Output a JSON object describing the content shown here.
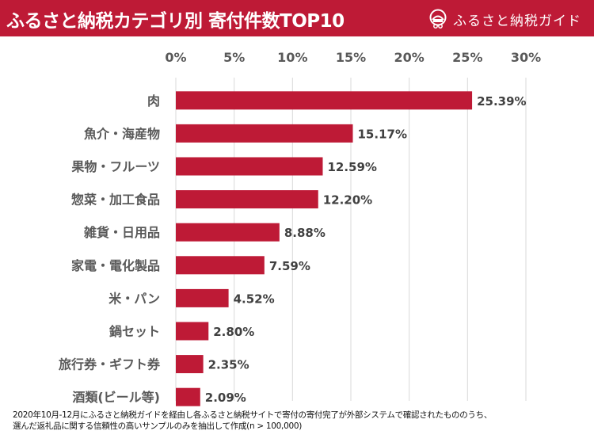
{
  "header": {
    "title": "ふるさと納税カテゴリ別 寄付件数TOP10",
    "brand_name": "ふるさと納税ガイド",
    "brand_icon": "furusato-guide-logo-icon",
    "background_color": "#be1a36"
  },
  "chart_data": {
    "type": "bar",
    "orientation": "horizontal",
    "title": "ふるさと納税カテゴリ別 寄付件数TOP10",
    "xlabel": "",
    "ylabel": "",
    "xlim": [
      0,
      30
    ],
    "x_ticks": [
      "0%",
      "5%",
      "10%",
      "15%",
      "20%",
      "25%",
      "30%"
    ],
    "x_tick_values": [
      0,
      5,
      10,
      15,
      20,
      25,
      30
    ],
    "x_axis_position": "top",
    "grid": true,
    "bar_color": "#be1a36",
    "categories": [
      "肉",
      "魚介・海産物",
      "果物・フルーツ",
      "惣菜・加工食品",
      "雑貨・日用品",
      "家電・電化製品",
      "米・パン",
      "鍋セット",
      "旅行券・ギフト券",
      "酒類(ビール等)"
    ],
    "values": [
      25.39,
      15.17,
      12.59,
      12.2,
      8.88,
      7.59,
      4.52,
      2.8,
      2.35,
      2.09
    ],
    "value_labels": [
      "25.39%",
      "15.17%",
      "12.59%",
      "12.20%",
      "8.88%",
      "7.59%",
      "4.52%",
      "2.80%",
      "2.35%",
      "2.09%"
    ],
    "unit": "%"
  },
  "footnote": {
    "line1": "2020年10月-12月にふるさと納税ガイドを経由し各ふるさと納税サイトで寄付の寄付完了が外部システムで確認されたもののうち、",
    "line2": "選んだ返礼品に関する信頼性の高いサンプルのみを抽出して作成(n > 100,000)"
  }
}
